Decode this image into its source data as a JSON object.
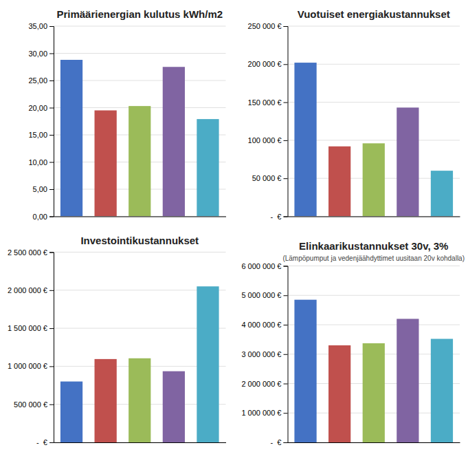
{
  "chart_data": [
    {
      "type": "bar",
      "title": "Primäärienergian kulutus kWh/m2",
      "categories": [
        null,
        null,
        null,
        null,
        null
      ],
      "values": [
        28.8,
        19.5,
        20.3,
        27.5,
        17.9
      ],
      "colors": [
        "#4472C4",
        "#C0504D",
        "#9BBB59",
        "#8064A2",
        "#4BACC6"
      ],
      "ylim": [
        0,
        35
      ],
      "yticks": [
        {
          "value": 0,
          "label": "0,00"
        },
        {
          "value": 5,
          "label": "5,00"
        },
        {
          "value": 10,
          "label": "10,00"
        },
        {
          "value": 15,
          "label": "15,00"
        },
        {
          "value": 20,
          "label": "20,00"
        },
        {
          "value": 25,
          "label": "25,00"
        },
        {
          "value": 30,
          "label": "30,00"
        },
        {
          "value": 35,
          "label": "35,00"
        }
      ],
      "grid": true,
      "tick_labels": "y"
    },
    {
      "type": "bar",
      "title": "Vuotuiset energiakustannukset",
      "categories": [
        null,
        null,
        null,
        null,
        null
      ],
      "values": [
        202000,
        92000,
        96000,
        143000,
        60000
      ],
      "colors": [
        "#4472C4",
        "#C0504D",
        "#9BBB59",
        "#8064A2",
        "#4BACC6"
      ],
      "ylim": [
        0,
        250000
      ],
      "yticks": [
        {
          "value": 0,
          "label": "-  €"
        },
        {
          "value": 50000,
          "label": "50 000 €"
        },
        {
          "value": 100000,
          "label": "100 000 €"
        },
        {
          "value": 150000,
          "label": "150 000 €"
        },
        {
          "value": 200000,
          "label": "200 000 €"
        },
        {
          "value": 250000,
          "label": "250 000 €"
        }
      ],
      "grid": true,
      "tick_labels": "y"
    },
    {
      "type": "bar",
      "title": "Investointikustannukset",
      "categories": [
        null,
        null,
        null,
        null,
        null
      ],
      "values": [
        800000,
        1095000,
        1105000,
        935000,
        2050000
      ],
      "colors": [
        "#4472C4",
        "#C0504D",
        "#9BBB59",
        "#8064A2",
        "#4BACC6"
      ],
      "ylim": [
        0,
        2500000
      ],
      "yticks": [
        {
          "value": 0,
          "label": "-  €"
        },
        {
          "value": 500000,
          "label": "500 000 €"
        },
        {
          "value": 1000000,
          "label": "1 000 000 €"
        },
        {
          "value": 1500000,
          "label": "1 500 000 €"
        },
        {
          "value": 2000000,
          "label": "2 000 000 €"
        },
        {
          "value": 2500000,
          "label": "2 500 000 €"
        }
      ],
      "grid": true,
      "tick_labels": "y"
    },
    {
      "type": "bar",
      "title": "Elinkaarikustannukset 30v, 3%",
      "subtitle": "(Lämpöpumput ja vedenjäähdyttimet uusitaan 20v kohdalla)",
      "categories": [
        null,
        null,
        null,
        null,
        null
      ],
      "values": [
        4850000,
        3300000,
        3370000,
        4200000,
        3520000
      ],
      "colors": [
        "#4472C4",
        "#C0504D",
        "#9BBB59",
        "#8064A2",
        "#4BACC6"
      ],
      "ylim": [
        0,
        6000000
      ],
      "yticks": [
        {
          "value": 0,
          "label": "-  €"
        },
        {
          "value": 1000000,
          "label": "1 000 000 €"
        },
        {
          "value": 2000000,
          "label": "2 000 000 €"
        },
        {
          "value": 3000000,
          "label": "3 000 000 €"
        },
        {
          "value": 4000000,
          "label": "4 000 000 €"
        },
        {
          "value": 5000000,
          "label": "5 000 000 €"
        },
        {
          "value": 6000000,
          "label": "6 000 000 €"
        }
      ],
      "grid": true,
      "tick_labels": "y"
    }
  ]
}
